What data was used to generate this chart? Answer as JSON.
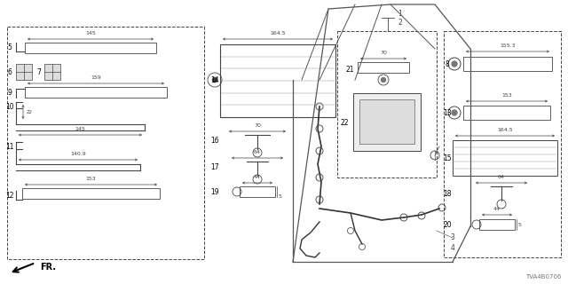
{
  "bg_color": "#ffffff",
  "fig_width": 6.4,
  "fig_height": 3.2,
  "watermark": "TVA4B0706",
  "line_color": "#444444",
  "label_fontsize": 5.5,
  "dim_fontsize": 4.5
}
